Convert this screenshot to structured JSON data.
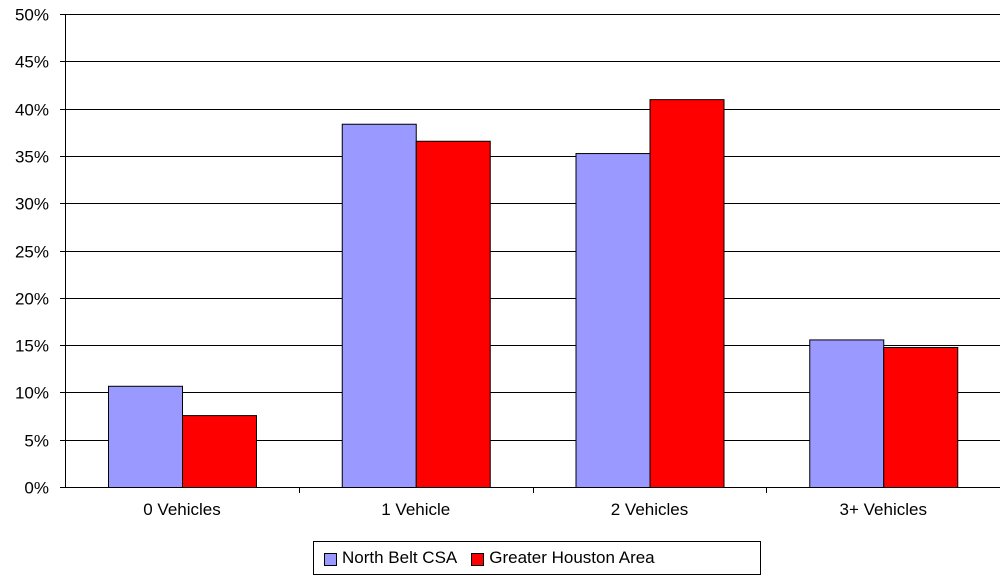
{
  "chart_data": {
    "type": "bar",
    "categories": [
      "0 Vehicles",
      "1 Vehicle",
      "2 Vehicles",
      "3+ Vehicles"
    ],
    "series": [
      {
        "name": "North Belt CSA",
        "values": [
          10.7,
          38.4,
          35.3,
          15.6
        ],
        "color": "#9999ff"
      },
      {
        "name": "Greater Houston Area",
        "values": [
          7.6,
          36.6,
          41.0,
          14.8
        ],
        "color": "#ff0000"
      }
    ],
    "ylim": [
      0,
      50
    ],
    "yticks": [
      0,
      5,
      10,
      15,
      20,
      25,
      30,
      35,
      40,
      45,
      50
    ],
    "ytick_labels": [
      "0%",
      "5%",
      "10%",
      "15%",
      "20%",
      "25%",
      "30%",
      "35%",
      "40%",
      "45%",
      "50%"
    ],
    "grid": true,
    "legend_position": "bottom"
  }
}
